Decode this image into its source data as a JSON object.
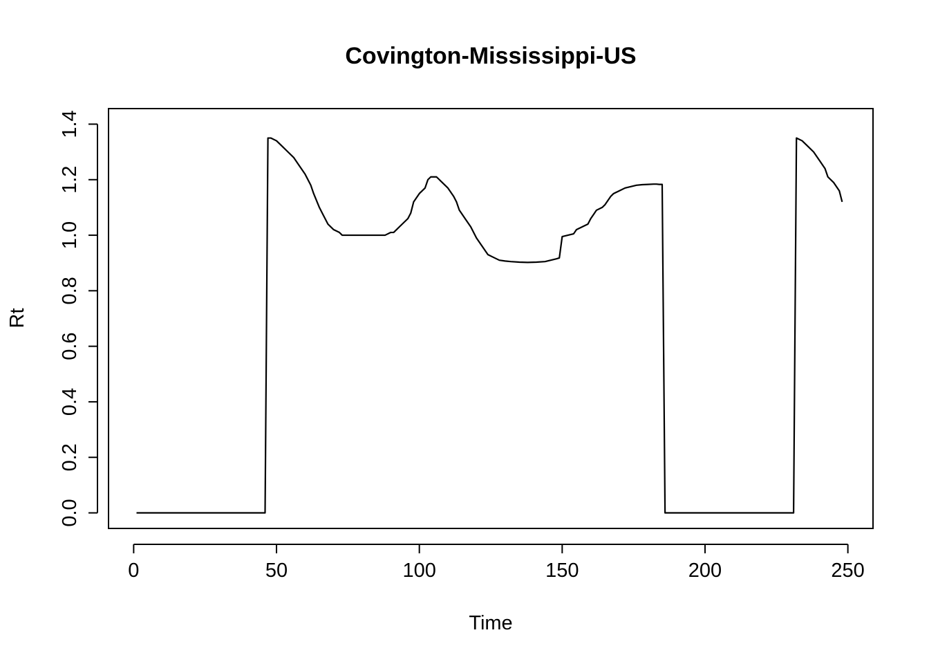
{
  "chart_data": {
    "type": "line",
    "title": "Covington-Mississippi-US",
    "xlabel": "Time",
    "ylabel": "Rt",
    "xlim": [
      -8.8,
      258.8
    ],
    "ylim": [
      -0.056,
      1.456
    ],
    "x_ticks": [
      0,
      50,
      100,
      150,
      200,
      250
    ],
    "x_tick_labels": [
      "0",
      "50",
      "100",
      "150",
      "200",
      "250"
    ],
    "y_ticks": [
      0.0,
      0.2,
      0.4,
      0.6,
      0.8,
      1.0,
      1.2,
      1.4
    ],
    "y_tick_labels": [
      "0.0",
      "0.2",
      "0.4",
      "0.6",
      "0.8",
      "1.0",
      "1.2",
      "1.4"
    ],
    "grid": false,
    "legend": "none",
    "line_color": "#000000",
    "series": [
      {
        "x": [
          1,
          46,
          47,
          48,
          50,
          52,
          54,
          56,
          58,
          60,
          62,
          63,
          65,
          66,
          67,
          68,
          70,
          72,
          73,
          75,
          80,
          85,
          88,
          90,
          91,
          92,
          93,
          95,
          96,
          97,
          98,
          100,
          102,
          103,
          104,
          106,
          107,
          108,
          110,
          112,
          113,
          114,
          116,
          118,
          120,
          122,
          124,
          126,
          128,
          130,
          132,
          135,
          138,
          141,
          144,
          146,
          148,
          149,
          150,
          152,
          154,
          155,
          157,
          159,
          160,
          161,
          162,
          164,
          165,
          166,
          167,
          168,
          170,
          172,
          174,
          176,
          178,
          180,
          182,
          183,
          184,
          185,
          186,
          200,
          210,
          220,
          230,
          231,
          232,
          234,
          236,
          238,
          240,
          242,
          243,
          245,
          247,
          248
        ],
        "y": [
          0.0,
          0.0,
          1.35,
          1.35,
          1.34,
          1.32,
          1.3,
          1.28,
          1.25,
          1.22,
          1.18,
          1.15,
          1.1,
          1.08,
          1.06,
          1.04,
          1.02,
          1.01,
          1.0,
          1.0,
          1.0,
          1.0,
          1.0,
          1.01,
          1.01,
          1.02,
          1.03,
          1.05,
          1.06,
          1.08,
          1.12,
          1.15,
          1.17,
          1.2,
          1.21,
          1.21,
          1.2,
          1.19,
          1.17,
          1.14,
          1.12,
          1.09,
          1.06,
          1.03,
          0.99,
          0.96,
          0.93,
          0.92,
          0.91,
          0.907,
          0.905,
          0.903,
          0.902,
          0.903,
          0.905,
          0.91,
          0.915,
          0.918,
          0.995,
          1.0,
          1.005,
          1.02,
          1.03,
          1.04,
          1.06,
          1.075,
          1.09,
          1.1,
          1.11,
          1.125,
          1.14,
          1.15,
          1.16,
          1.17,
          1.175,
          1.18,
          1.182,
          1.183,
          1.184,
          1.184,
          1.183,
          1.183,
          0.0,
          0.0,
          0.0,
          0.0,
          0.0,
          0.0,
          1.35,
          1.34,
          1.32,
          1.3,
          1.27,
          1.24,
          1.21,
          1.19,
          1.16,
          1.12
        ]
      }
    ]
  }
}
